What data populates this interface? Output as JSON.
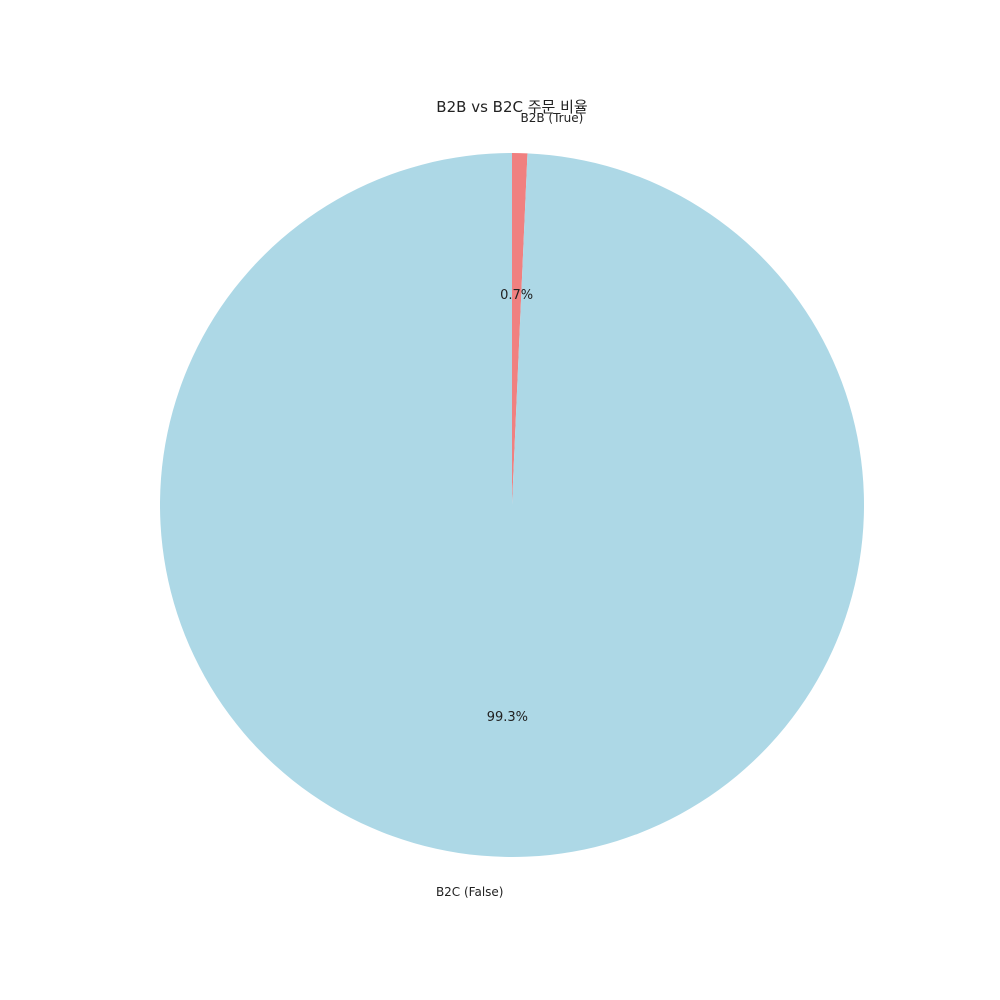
{
  "chart_data": {
    "type": "pie",
    "title": "B2B vs B2C 주문 비율",
    "labels": [
      "B2B (True)",
      "B2C (False)"
    ],
    "values": [
      0.7,
      99.3
    ],
    "percent_labels": [
      "0.7%",
      "99.3%"
    ],
    "colors": [
      "#f08080",
      "#add8e6"
    ],
    "start_angle_deg": 90,
    "direction": "clockwise",
    "legend": "none"
  }
}
